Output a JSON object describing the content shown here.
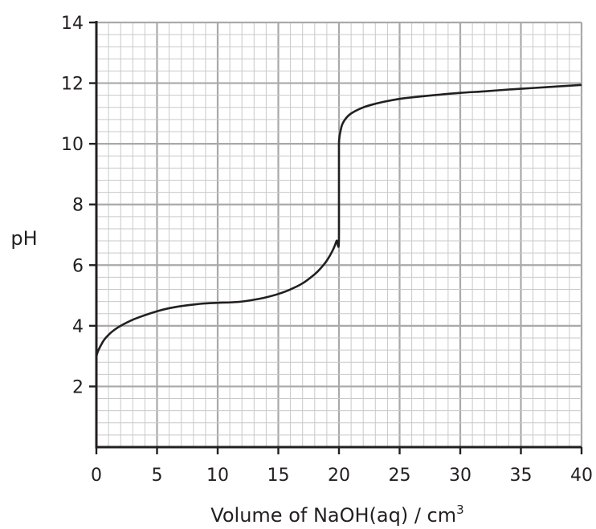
{
  "chart_data": {
    "type": "line",
    "xlabel": "Volume of NaOH(aq) / cm",
    "xlabel_superscript": "3",
    "ylabel": "pH",
    "xlim": [
      0,
      40
    ],
    "ylim": [
      0,
      14
    ],
    "x_ticks": [
      0,
      5,
      10,
      15,
      20,
      25,
      30,
      35,
      40
    ],
    "y_ticks": [
      2,
      4,
      6,
      8,
      10,
      12,
      14
    ],
    "x_tick_labels": [
      "0",
      "5",
      "10",
      "15",
      "20",
      "25",
      "30",
      "35",
      "40"
    ],
    "y_tick_labels": [
      "2",
      "4",
      "6",
      "8",
      "10",
      "12",
      "14"
    ],
    "grid": true,
    "series": [
      {
        "x": [
          0,
          0.5,
          1,
          1.5,
          2,
          3,
          4,
          5,
          6,
          7,
          8,
          9,
          10,
          11,
          12,
          13,
          14,
          15,
          16,
          17,
          18,
          18.5,
          19,
          19.5,
          19.8,
          20,
          20,
          20.2,
          20.5,
          21,
          22,
          23,
          24,
          25,
          26,
          28,
          30,
          32,
          34,
          36,
          38,
          40
        ],
        "y": [
          2.95,
          3.45,
          3.7,
          3.87,
          4.0,
          4.2,
          4.35,
          4.48,
          4.58,
          4.65,
          4.7,
          4.74,
          4.76,
          4.77,
          4.8,
          4.86,
          4.94,
          5.05,
          5.2,
          5.4,
          5.7,
          5.9,
          6.15,
          6.5,
          6.8,
          7.1,
          10.0,
          10.55,
          10.8,
          11.0,
          11.2,
          11.32,
          11.41,
          11.48,
          11.53,
          11.61,
          11.68,
          11.73,
          11.79,
          11.84,
          11.89,
          11.94
        ]
      }
    ]
  }
}
